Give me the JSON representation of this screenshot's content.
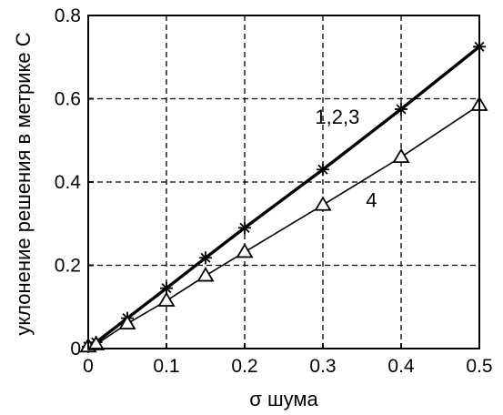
{
  "chart_data": {
    "type": "line",
    "title": "",
    "xlabel": "σ шума",
    "ylabel": "уклонение решения в метрике С",
    "xlim": [
      0,
      0.5
    ],
    "ylim": [
      0,
      0.8
    ],
    "xticks": [
      0,
      0.1,
      0.2,
      0.3,
      0.4,
      0.5
    ],
    "xtick_labels": [
      "0",
      "0.1",
      "0.2",
      "0.3",
      "0.4",
      "0.5"
    ],
    "yticks": [
      0,
      0.2,
      0.4,
      0.6,
      0.8
    ],
    "ytick_labels": [
      "0",
      "0.2",
      "0.4",
      "0.6",
      "0.8"
    ],
    "grid": true,
    "grid_style": "dashed",
    "series": [
      {
        "name": "1,2,3",
        "marker": "star",
        "line": "thick",
        "color": "#000000",
        "x": [
          0,
          0.01,
          0.05,
          0.1,
          0.15,
          0.2,
          0.3,
          0.4,
          0.5
        ],
        "y": [
          0.005,
          0.015,
          0.073,
          0.145,
          0.218,
          0.29,
          0.43,
          0.575,
          0.725
        ]
      },
      {
        "name": "4",
        "marker": "triangle",
        "line": "thin",
        "color": "#000000",
        "x": [
          0,
          0.01,
          0.05,
          0.1,
          0.15,
          0.2,
          0.3,
          0.4,
          0.5
        ],
        "y": [
          0.005,
          0.01,
          0.06,
          0.115,
          0.175,
          0.232,
          0.345,
          0.46,
          0.585
        ]
      }
    ],
    "annotations": [
      {
        "text": "1,2,3",
        "x": 0.29,
        "y": 0.54
      },
      {
        "text": "4",
        "x": 0.355,
        "y": 0.34
      }
    ]
  }
}
